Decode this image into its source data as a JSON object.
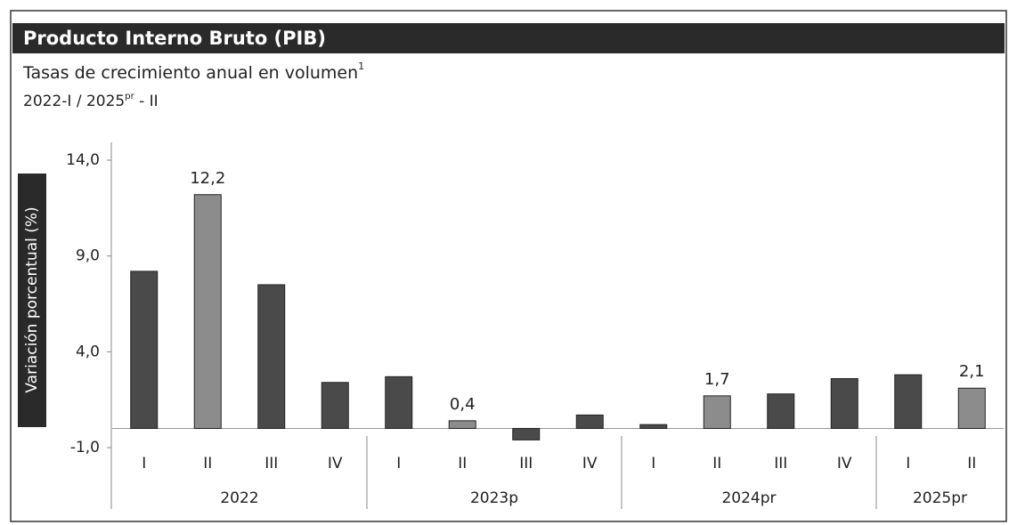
{
  "chart_data": {
    "type": "bar",
    "title": "Producto Interno Bruto (PIB)",
    "subtitle": "Tasas de crecimiento anual en volumen",
    "subtitle_note": "1",
    "period": {
      "start": "2022-I / 2025",
      "mark": "pr",
      "end": " - II"
    },
    "ylabel": "Variación porcentual (%)",
    "groups": [
      {
        "name": "2022",
        "categories": [
          "I",
          "II",
          "III",
          "IV"
        ]
      },
      {
        "name": "2023p",
        "categories": [
          "I",
          "II",
          "III",
          "IV"
        ]
      },
      {
        "name": "2024pr",
        "categories": [
          "I",
          "II",
          "III",
          "IV"
        ]
      },
      {
        "name": "2025pr",
        "categories": [
          "I",
          "II"
        ]
      }
    ],
    "values": [
      8.2,
      12.2,
      7.5,
      2.4,
      2.7,
      0.4,
      -0.6,
      0.7,
      0.2,
      1.7,
      1.8,
      2.6,
      2.8,
      2.1
    ],
    "value_labels": [
      null,
      "12,2",
      null,
      null,
      null,
      "0,4",
      null,
      null,
      null,
      "1,7",
      null,
      null,
      null,
      "2,1"
    ],
    "colors": [
      "#4a4a4a",
      "#8c8c8c",
      "#4a4a4a",
      "#4a4a4a",
      "#4a4a4a",
      "#8c8c8c",
      "#4a4a4a",
      "#4a4a4a",
      "#4a4a4a",
      "#8c8c8c",
      "#4a4a4a",
      "#4a4a4a",
      "#4a4a4a",
      "#8c8c8c"
    ],
    "ylim": [
      -1,
      14
    ],
    "yticks": [
      {
        "value": -1,
        "label": "-1,0"
      },
      {
        "value": 4,
        "label": "4,0"
      },
      {
        "value": 9,
        "label": "9,0"
      },
      {
        "value": 14,
        "label": "14,0"
      }
    ],
    "grid": false
  }
}
